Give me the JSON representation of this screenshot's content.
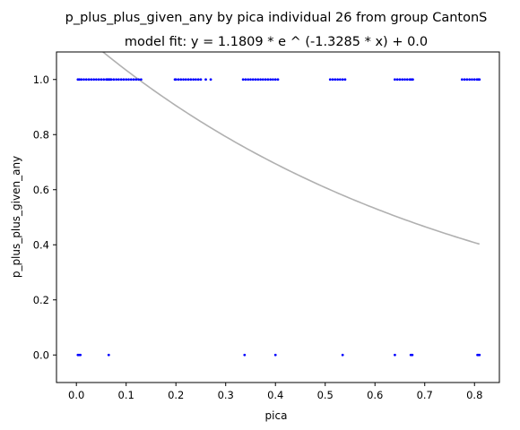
{
  "chart_data": {
    "type": "scatter",
    "title": "p_plus_plus_given_any by pica individual 26 from group CantonS",
    "subtitle": "model fit: y = 1.1809 * e ^ (-1.3285 * x) + 0.0",
    "xlabel": "pica",
    "ylabel": "p_plus_plus_given_any",
    "xlim": [
      -0.04,
      0.85
    ],
    "ylim": [
      -0.1,
      1.1
    ],
    "xticks": [
      0.0,
      0.1,
      0.2,
      0.3,
      0.4,
      0.5,
      0.6,
      0.7,
      0.8
    ],
    "xtick_labels": [
      "0.0",
      "0.1",
      "0.2",
      "0.3",
      "0.4",
      "0.5",
      "0.6",
      "0.7",
      "0.8"
    ],
    "yticks": [
      0.0,
      0.2,
      0.4,
      0.6,
      0.8,
      1.0
    ],
    "ytick_labels": [
      "0.0",
      "0.2",
      "0.4",
      "0.6",
      "0.8",
      "1.0"
    ],
    "grid": false,
    "series": [
      {
        "kind": "scatter",
        "color": "#0000ff",
        "points": [
          [
            0.003,
            1
          ],
          [
            0.006,
            1
          ],
          [
            0.01,
            1
          ],
          [
            0.015,
            1
          ],
          [
            0.02,
            1
          ],
          [
            0.025,
            1
          ],
          [
            0.03,
            1
          ],
          [
            0.035,
            1
          ],
          [
            0.04,
            1
          ],
          [
            0.045,
            1
          ],
          [
            0.05,
            1
          ],
          [
            0.055,
            1
          ],
          [
            0.06,
            1
          ],
          [
            0.062,
            1
          ],
          [
            0.064,
            1
          ],
          [
            0.066,
            1
          ],
          [
            0.068,
            1
          ],
          [
            0.07,
            1
          ],
          [
            0.075,
            1
          ],
          [
            0.08,
            1
          ],
          [
            0.085,
            1
          ],
          [
            0.09,
            1
          ],
          [
            0.095,
            1
          ],
          [
            0.1,
            1
          ],
          [
            0.105,
            1
          ],
          [
            0.11,
            1
          ],
          [
            0.115,
            1
          ],
          [
            0.12,
            1
          ],
          [
            0.125,
            1
          ],
          [
            0.13,
            1
          ],
          [
            0.198,
            1
          ],
          [
            0.2,
            1
          ],
          [
            0.205,
            1
          ],
          [
            0.21,
            1
          ],
          [
            0.215,
            1
          ],
          [
            0.22,
            1
          ],
          [
            0.225,
            1
          ],
          [
            0.23,
            1
          ],
          [
            0.235,
            1
          ],
          [
            0.24,
            1
          ],
          [
            0.245,
            1
          ],
          [
            0.25,
            1
          ],
          [
            0.26,
            1
          ],
          [
            0.27,
            1
          ],
          [
            0.335,
            1
          ],
          [
            0.34,
            1
          ],
          [
            0.345,
            1
          ],
          [
            0.35,
            1
          ],
          [
            0.355,
            1
          ],
          [
            0.36,
            1
          ],
          [
            0.365,
            1
          ],
          [
            0.37,
            1
          ],
          [
            0.375,
            1
          ],
          [
            0.38,
            1
          ],
          [
            0.385,
            1
          ],
          [
            0.39,
            1
          ],
          [
            0.395,
            1
          ],
          [
            0.4,
            1
          ],
          [
            0.405,
            1
          ],
          [
            0.51,
            1
          ],
          [
            0.515,
            1
          ],
          [
            0.52,
            1
          ],
          [
            0.525,
            1
          ],
          [
            0.53,
            1
          ],
          [
            0.535,
            1
          ],
          [
            0.54,
            1
          ],
          [
            0.64,
            1
          ],
          [
            0.645,
            1
          ],
          [
            0.65,
            1
          ],
          [
            0.655,
            1
          ],
          [
            0.66,
            1
          ],
          [
            0.665,
            1
          ],
          [
            0.67,
            1
          ],
          [
            0.673,
            1
          ],
          [
            0.676,
            1
          ],
          [
            0.775,
            1
          ],
          [
            0.78,
            1
          ],
          [
            0.785,
            1
          ],
          [
            0.79,
            1
          ],
          [
            0.795,
            1
          ],
          [
            0.8,
            1
          ],
          [
            0.805,
            1
          ],
          [
            0.808,
            1
          ],
          [
            0.81,
            1
          ],
          [
            0.003,
            0
          ],
          [
            0.005,
            0
          ],
          [
            0.008,
            0
          ],
          [
            0.065,
            0
          ],
          [
            0.338,
            0
          ],
          [
            0.4,
            0
          ],
          [
            0.535,
            0
          ],
          [
            0.64,
            0
          ],
          [
            0.672,
            0
          ],
          [
            0.675,
            0
          ],
          [
            0.806,
            0
          ],
          [
            0.808,
            0
          ],
          [
            0.81,
            0
          ]
        ]
      },
      {
        "kind": "line",
        "color": "#b0b0b0",
        "fit": {
          "a": 1.1809,
          "b": -1.3285,
          "c": 0.0
        },
        "x_range": [
          0.0,
          0.81
        ]
      }
    ]
  }
}
